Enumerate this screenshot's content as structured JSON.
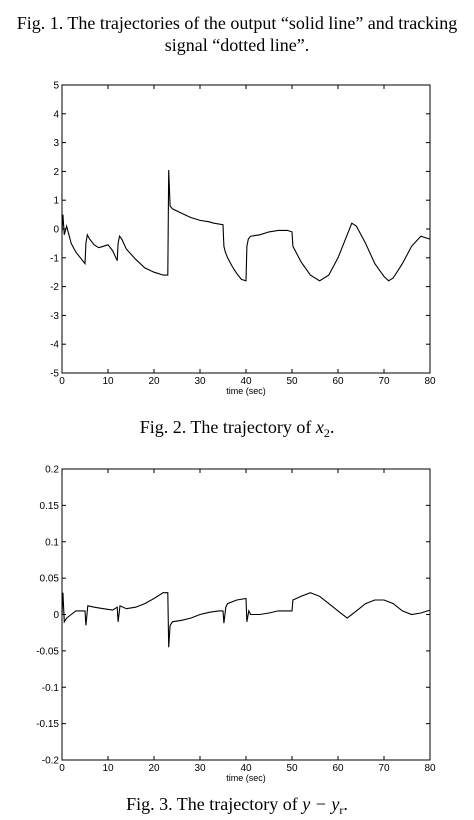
{
  "captions": {
    "fig1": "Fig. 1. The trajectories of the output “solid line” and tracking signal “dotted line”.",
    "fig2_prefix": "Fig. 2. The trajectory of ",
    "fig2_var": "x",
    "fig2_sub": "2",
    "fig2_suffix": ".",
    "fig3_prefix": "Fig. 3. The trajectory of ",
    "fig3_var": "y − y",
    "fig3_sub": "r",
    "fig3_suffix": "."
  },
  "chart_data": [
    {
      "type": "line",
      "xlabel": "time (sec)",
      "ylabel": "",
      "xlim": [
        0,
        80
      ],
      "ylim": [
        -5,
        5
      ],
      "xticks": [
        "0",
        "10",
        "20",
        "30",
        "40",
        "50",
        "60",
        "70",
        "80"
      ],
      "yticks": [
        "5",
        "4",
        "3",
        "2",
        "1",
        "0",
        "-1",
        "-2",
        "-3",
        "-4",
        "-5"
      ],
      "series": [
        {
          "x": [
            0,
            0.2,
            0.5,
            1,
            2,
            3,
            4,
            5,
            5.2,
            5.5,
            6,
            7,
            8,
            9,
            10,
            11,
            12,
            12.2,
            12.5,
            13,
            14,
            16,
            18,
            20,
            22,
            23,
            23.2,
            23.5,
            24,
            26,
            28,
            30,
            32,
            33,
            35,
            35.2,
            35.5,
            36,
            37,
            38,
            39,
            40,
            40.2,
            40.5,
            41,
            43,
            45,
            47,
            49,
            50,
            50.2,
            52,
            54,
            56,
            58,
            60,
            62,
            63,
            64,
            66,
            68,
            70,
            71,
            72,
            74,
            76,
            78,
            80
          ],
          "y": [
            -0.1,
            0.5,
            -0.2,
            0.1,
            -0.5,
            -0.8,
            -1,
            -1.2,
            -0.5,
            -0.2,
            -0.35,
            -0.55,
            -0.65,
            -0.6,
            -0.55,
            -0.75,
            -1.1,
            -0.5,
            -0.25,
            -0.35,
            -0.7,
            -1.05,
            -1.35,
            -1.5,
            -1.6,
            -1.6,
            2.05,
            0.8,
            0.7,
            0.55,
            0.4,
            0.3,
            0.25,
            0.2,
            0.15,
            -0.6,
            -0.8,
            -1.0,
            -1.3,
            -1.55,
            -1.75,
            -1.8,
            -0.6,
            -0.35,
            -0.25,
            -0.2,
            -0.1,
            -0.05,
            -0.05,
            -0.1,
            -0.6,
            -1.15,
            -1.6,
            -1.8,
            -1.6,
            -1.0,
            -0.2,
            0.2,
            0.1,
            -0.5,
            -1.2,
            -1.65,
            -1.8,
            -1.7,
            -1.2,
            -0.6,
            -0.25,
            -0.35
          ]
        }
      ]
    },
    {
      "type": "line",
      "xlabel": "time (sec)",
      "ylabel": "",
      "xlim": [
        0,
        80
      ],
      "ylim": [
        -0.2,
        0.2
      ],
      "xticks": [
        "0",
        "10",
        "20",
        "30",
        "40",
        "50",
        "60",
        "70",
        "80"
      ],
      "yticks": [
        "0.2",
        "0.15",
        "0.1",
        "0.05",
        "0",
        "-0.05",
        "-0.1",
        "-0.15",
        "-0.2"
      ],
      "series": [
        {
          "x": [
            0,
            0.2,
            0.5,
            1,
            2,
            3,
            4,
            5,
            5.2,
            5.6,
            7,
            9,
            11,
            12,
            12.2,
            12.6,
            14,
            16,
            18,
            20,
            22,
            23,
            23.2,
            23.5,
            24,
            26,
            28,
            30,
            32,
            34,
            35,
            35.2,
            35.6,
            36,
            38,
            40,
            40.2,
            40.6,
            41,
            43,
            45,
            47,
            49,
            50,
            50.2,
            52,
            54,
            56,
            58,
            60,
            62,
            64,
            66,
            68,
            70,
            72,
            74,
            76,
            78,
            80
          ],
          "y": [
            0,
            0.03,
            -0.01,
            -0.005,
            0.0,
            0.005,
            0.005,
            0.005,
            -0.015,
            0.012,
            0.01,
            0.008,
            0.006,
            0.01,
            -0.01,
            0.012,
            0.008,
            0.01,
            0.015,
            0.022,
            0.03,
            0.03,
            -0.045,
            -0.015,
            -0.01,
            -0.008,
            -0.005,
            0,
            0.003,
            0.005,
            0.005,
            -0.012,
            0.01,
            0.015,
            0.02,
            0.022,
            -0.01,
            0.005,
            0.0,
            0.0,
            0.002,
            0.005,
            0.005,
            0.005,
            0.02,
            0.025,
            0.03,
            0.025,
            0.015,
            0.005,
            -0.005,
            0.005,
            0.015,
            0.02,
            0.02,
            0.015,
            0.005,
            0.0,
            0.002,
            0.006
          ]
        }
      ]
    }
  ]
}
